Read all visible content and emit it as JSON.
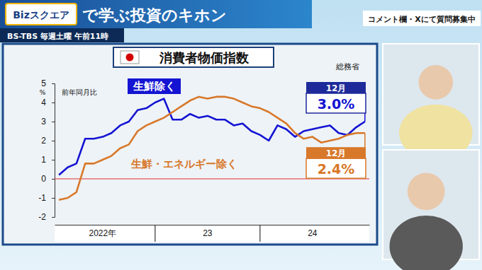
{
  "header": {
    "logo": "Bizスクエア",
    "title": "で学ぶ投資のキホン",
    "schedule": "BS-TBS 毎週土曜 午前11時",
    "notice": "コメント欄・Xにて質問募集中"
  },
  "chart_data": {
    "type": "line",
    "title": "消費者物価指数",
    "source": "総務省",
    "y_label": "前年同月比",
    "y_unit": "%",
    "categories": [
      null,
      null,
      null,
      null,
      null,
      "2022年",
      null,
      null,
      null,
      null,
      null,
      null,
      null,
      null,
      null,
      null,
      null,
      "23",
      null,
      null,
      null,
      null,
      null,
      null,
      null,
      null,
      null,
      null,
      null,
      "24",
      null,
      null,
      null,
      null,
      null,
      null
    ],
    "series": [
      {
        "name": "生鮮除く",
        "color": "#1414d2",
        "values": [
          0.2,
          0.6,
          0.8,
          2.1,
          2.1,
          2.2,
          2.4,
          2.8,
          3.0,
          3.6,
          3.7,
          4.0,
          4.2,
          3.1,
          3.1,
          3.4,
          3.2,
          3.3,
          3.1,
          3.1,
          2.8,
          2.9,
          2.5,
          2.3,
          2.0,
          2.8,
          2.6,
          2.2,
          2.5,
          2.6,
          2.7,
          2.8,
          2.4,
          2.3,
          2.7,
          3.0
        ]
      },
      {
        "name": "生鮮・エネルギー除く",
        "color": "#d8782a",
        "values": [
          -1.1,
          -1.0,
          -0.7,
          0.8,
          0.8,
          1.0,
          1.2,
          1.6,
          1.8,
          2.5,
          2.8,
          3.0,
          3.2,
          3.5,
          3.8,
          4.1,
          4.3,
          4.2,
          4.3,
          4.3,
          4.2,
          4.0,
          3.8,
          3.7,
          3.5,
          3.2,
          2.9,
          2.4,
          2.1,
          2.2,
          1.9,
          2.0,
          2.1,
          2.3,
          2.4,
          2.4
        ]
      }
    ],
    "ylim": [
      -2,
      5
    ],
    "yticks": [
      -2,
      -1,
      0,
      1,
      2,
      3,
      4,
      5
    ],
    "grid": false,
    "annotations": [
      {
        "series": 0,
        "label": "12月",
        "text": "3.0%",
        "value": 3.0
      },
      {
        "series": 1,
        "label": "12月",
        "text": "2.4%",
        "value": 2.4
      }
    ]
  }
}
